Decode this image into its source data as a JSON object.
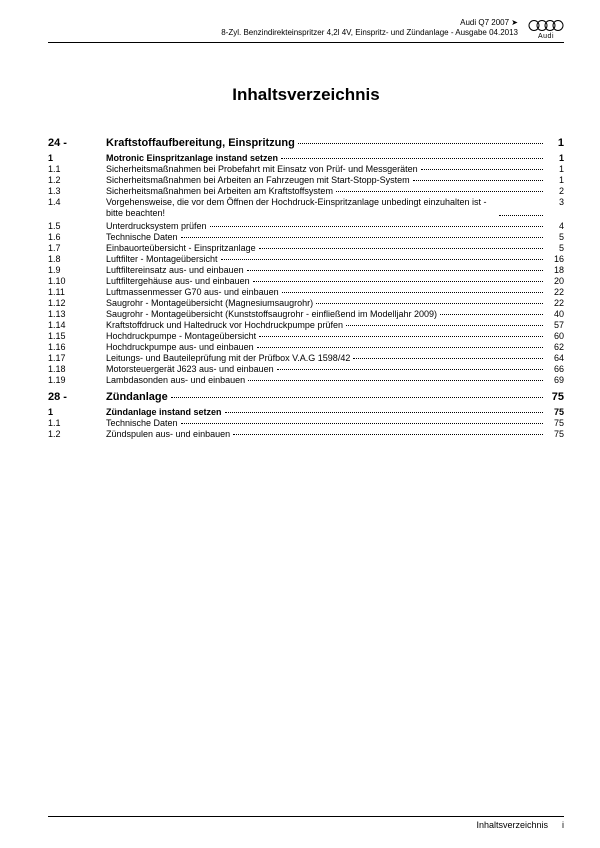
{
  "header": {
    "line1": "Audi Q7 2007 ➤",
    "line2": "8-Zyl. Benzindirekteinspritzer 4,2l 4V, Einspritz- und Zündanlage - Ausgabe 04.2013",
    "brand": "Audi"
  },
  "title": "Inhaltsverzeichnis",
  "chapters": [
    {
      "num": "24 -",
      "label": "Kraftstoffaufbereitung, Einspritzung",
      "page": "1",
      "entries": [
        {
          "num": "1",
          "label": "Motronic Einspritzanlage instand setzen",
          "page": "1",
          "bold": true
        },
        {
          "num": "1.1",
          "label": "Sicherheitsmaßnahmen bei Probefahrt mit Einsatz von Prüf- und Messgeräten",
          "page": "1"
        },
        {
          "num": "1.2",
          "label": "Sicherheitsmaßnahmen bei Arbeiten an Fahrzeugen mit Start-Stopp-System",
          "page": "1"
        },
        {
          "num": "1.3",
          "label": "Sicherheitsmaßnahmen bei Arbeiten am Kraftstoffsystem",
          "page": "2"
        },
        {
          "num": "1.4",
          "label": "Vorgehensweise, die vor dem Öffnen der Hochdruck-Einspritzanlage unbedingt einzuhalten ist - bitte beachten!",
          "page": "3",
          "multi": true
        },
        {
          "num": "1.5",
          "label": "Unterdrucksystem prüfen",
          "page": "4"
        },
        {
          "num": "1.6",
          "label": "Technische Daten",
          "page": "5"
        },
        {
          "num": "1.7",
          "label": "Einbauorteübersicht - Einspritzanlage",
          "page": "5"
        },
        {
          "num": "1.8",
          "label": "Luftfilter - Montageübersicht",
          "page": "16"
        },
        {
          "num": "1.9",
          "label": "Luftfiltereinsatz aus- und einbauen",
          "page": "18"
        },
        {
          "num": "1.10",
          "label": "Luftfiltergehäuse aus- und einbauen",
          "page": "20"
        },
        {
          "num": "1.11",
          "label": "Luftmassenmesser G70 aus- und einbauen",
          "page": "22"
        },
        {
          "num": "1.12",
          "label": "Saugrohr - Montageübersicht (Magnesiumsaugrohr)",
          "page": "22"
        },
        {
          "num": "1.13",
          "label": "Saugrohr - Montageübersicht (Kunststoffsaugrohr - einfließend im Modelljahr 2009)",
          "page": "40"
        },
        {
          "num": "1.14",
          "label": "Kraftstoffdruck und Haltedruck vor Hochdruckpumpe prüfen",
          "page": "57"
        },
        {
          "num": "1.15",
          "label": "Hochdruckpumpe - Montageübersicht",
          "page": "60"
        },
        {
          "num": "1.16",
          "label": "Hochdruckpumpe aus- und einbauen",
          "page": "62"
        },
        {
          "num": "1.17",
          "label": "Leitungs- und Bauteileprüfung mit der Prüfbox V.A.G 1598/42",
          "page": "64"
        },
        {
          "num": "1.18",
          "label": "Motorsteuergerät J623 aus- und einbauen",
          "page": "66"
        },
        {
          "num": "1.19",
          "label": "Lambdasonden aus- und einbauen",
          "page": "69"
        }
      ]
    },
    {
      "num": "28 -",
      "label": "Zündanlage",
      "page": "75",
      "entries": [
        {
          "num": "1",
          "label": "Zündanlage instand setzen",
          "page": "75",
          "bold": true
        },
        {
          "num": "1.1",
          "label": "Technische Daten",
          "page": "75"
        },
        {
          "num": "1.2",
          "label": "Zündspulen aus- und einbauen",
          "page": "75"
        }
      ]
    }
  ],
  "footer": {
    "label": "Inhaltsverzeichnis",
    "page": "i"
  }
}
